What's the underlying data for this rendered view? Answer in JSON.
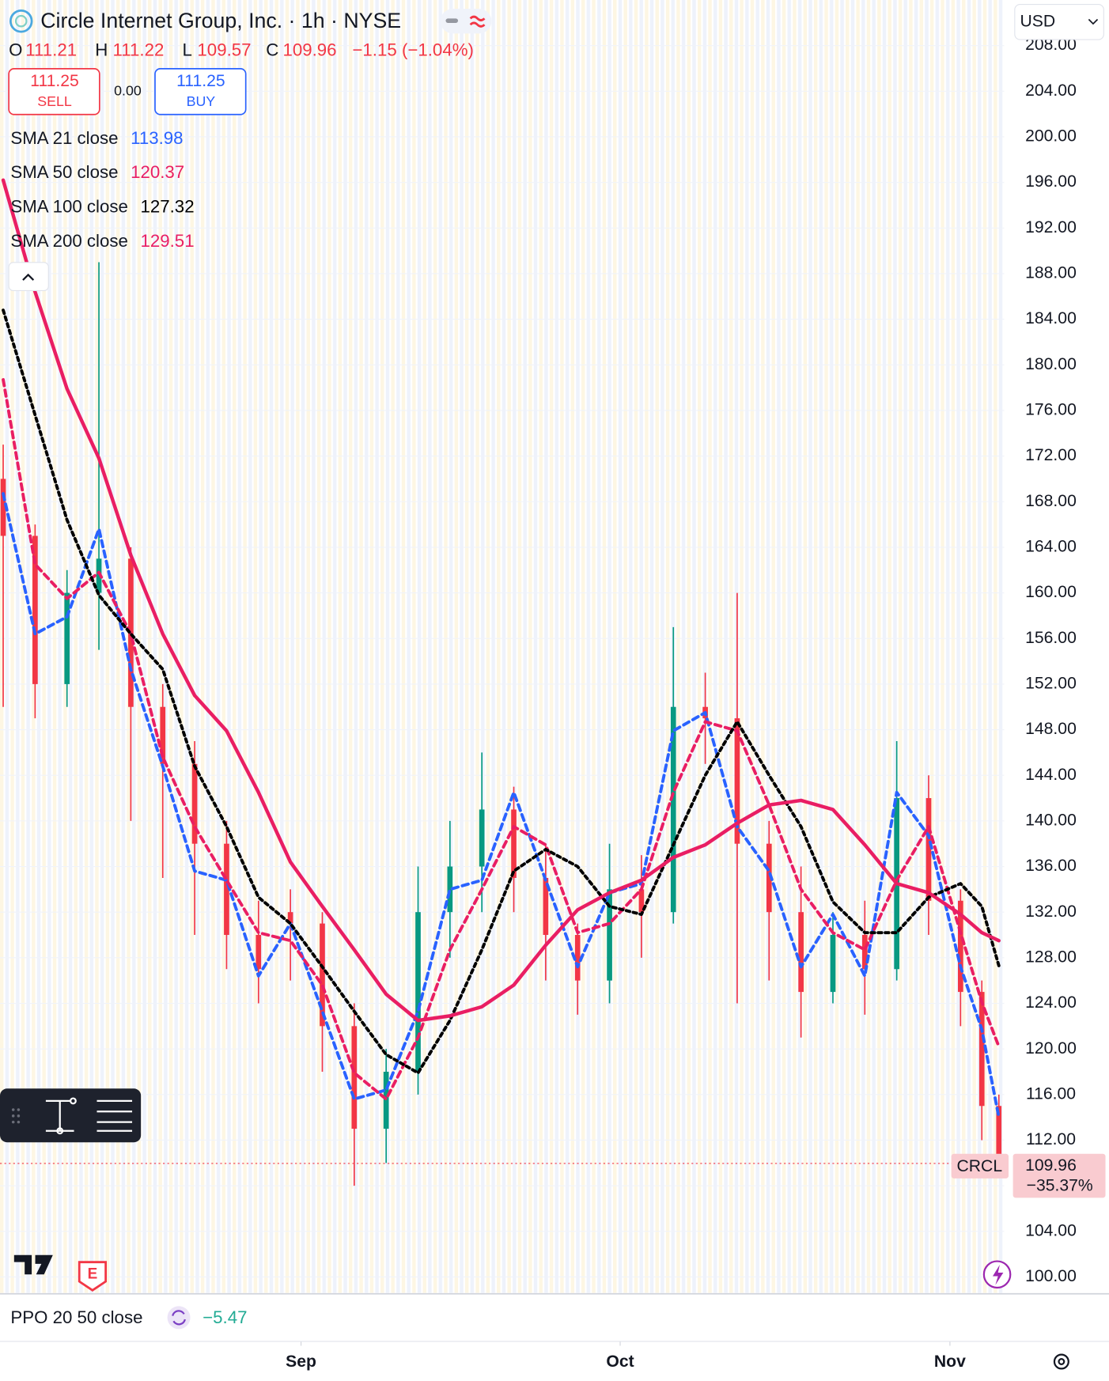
{
  "chart_data": {
    "type": "candlestick",
    "title": "Circle Internet Group, Inc. · 1h · NYSE",
    "currency": "USD",
    "ohlc": {
      "open_label": "O",
      "open": 111.21,
      "high_label": "H",
      "high": 111.22,
      "low_label": "L",
      "low": 109.57,
      "close_label": "C",
      "close": 109.96,
      "change": "−1.15 (−1.04%)"
    },
    "trade": {
      "sell_price": "111.25",
      "sell_label": "SELL",
      "spread": "0.00",
      "buy_price": "111.25",
      "buy_label": "BUY"
    },
    "x": [
      -28,
      -25,
      -22,
      -19,
      -16,
      -13,
      -10,
      -7,
      -4,
      -1,
      2,
      5,
      8,
      11,
      14,
      17,
      20,
      23,
      26,
      29,
      32,
      35,
      38,
      41,
      44,
      47,
      50,
      53,
      56,
      59,
      62,
      64,
      65.6
    ],
    "xlim": [
      -28.3,
      66.1
    ],
    "xticks": [
      {
        "value": 0,
        "label": "Sep"
      },
      {
        "value": 30,
        "label": "Oct"
      },
      {
        "value": 61,
        "label": "Nov"
      }
    ],
    "ylim": [
      98.6,
      212
    ],
    "yticks": [
      {
        "value": 100,
        "label": "100.00"
      },
      {
        "value": 104,
        "label": "104.00"
      },
      {
        "value": 108,
        "label": "108.00"
      },
      {
        "value": 112,
        "label": "112.00"
      },
      {
        "value": 116,
        "label": "116.00"
      },
      {
        "value": 120,
        "label": "120.00"
      },
      {
        "value": 124,
        "label": "124.00"
      },
      {
        "value": 128,
        "label": "128.00"
      },
      {
        "value": 132,
        "label": "132.00"
      },
      {
        "value": 136,
        "label": "136.00"
      },
      {
        "value": 140,
        "label": "140.00"
      },
      {
        "value": 144,
        "label": "144.00"
      },
      {
        "value": 148,
        "label": "148.00"
      },
      {
        "value": 152,
        "label": "152.00"
      },
      {
        "value": 156,
        "label": "156.00"
      },
      {
        "value": 160,
        "label": "160.00"
      },
      {
        "value": 164,
        "label": "164.00"
      },
      {
        "value": 168,
        "label": "168.00"
      },
      {
        "value": 172,
        "label": "172.00"
      },
      {
        "value": 176,
        "label": "176.00"
      },
      {
        "value": 180,
        "label": "180.00"
      },
      {
        "value": 184,
        "label": "184.00"
      },
      {
        "value": 188,
        "label": "188.00"
      },
      {
        "value": 192,
        "label": "192.00"
      },
      {
        "value": 196,
        "label": "196.00"
      },
      {
        "value": 200,
        "label": "200.00"
      },
      {
        "value": 204,
        "label": "204.00"
      },
      {
        "value": 208,
        "label": "208.00"
      }
    ],
    "candles": {
      "up_color": "#089981",
      "down_color": "#f23645",
      "open": [
        170,
        165,
        152,
        160,
        163,
        150,
        145,
        138,
        130,
        132,
        131,
        122,
        113,
        118,
        132,
        136,
        141,
        135,
        130,
        126,
        134,
        132,
        150,
        149,
        138,
        132,
        125,
        130,
        127,
        142,
        133,
        125,
        115
      ],
      "high": [
        173,
        166,
        162,
        189,
        164,
        152,
        147,
        140,
        133,
        134,
        132,
        124,
        120,
        136,
        140,
        146,
        143,
        138,
        131,
        138,
        137,
        157,
        153,
        160,
        140,
        136,
        132,
        133,
        147,
        144,
        134,
        126,
        116
      ],
      "low": [
        150,
        149,
        150,
        155,
        140,
        135,
        130,
        127,
        124,
        126,
        118,
        108,
        110,
        116,
        128,
        132,
        132,
        126,
        123,
        124,
        128,
        131,
        145,
        124,
        126,
        121,
        124,
        123,
        126,
        130,
        122,
        112,
        109.57
      ],
      "close": [
        165,
        152,
        160,
        163,
        150,
        145,
        138,
        130,
        127,
        131,
        122,
        113,
        118,
        132,
        136,
        141,
        135,
        130,
        126,
        134,
        132,
        150,
        149,
        138,
        132,
        125,
        130,
        127,
        142,
        133,
        125,
        115,
        109.96
      ]
    },
    "series": [
      {
        "name": "SMA 21 close",
        "legend_value": 113.98,
        "color": "#2962ff",
        "style": "dashed",
        "values": [
          168.7,
          156.4,
          157.9,
          165.6,
          153.3,
          144.8,
          135.6,
          134.8,
          126.4,
          131,
          123.3,
          115.6,
          116.4,
          123.3,
          134,
          134.8,
          142.5,
          134.8,
          127.2,
          133.7,
          134.5,
          147.9,
          149.5,
          139.5,
          135.6,
          127.2,
          131.8,
          126.4,
          142.5,
          138.7,
          127.2,
          121.7,
          114
        ]
      },
      {
        "name": "SMA 50 close",
        "legend_value": 120.37,
        "color": "#e91e63",
        "style": "dashed",
        "values": [
          178.7,
          162.5,
          159.5,
          161.8,
          156.4,
          145.6,
          139.5,
          134.8,
          130.2,
          129.5,
          125.6,
          117.9,
          115.6,
          121,
          128.7,
          134,
          139.5,
          137.9,
          130.2,
          131,
          134,
          142.5,
          148.7,
          147.9,
          141.4,
          134,
          130.2,
          128.7,
          134.8,
          139.5,
          130.2,
          124.1,
          120.2
        ]
      },
      {
        "name": "SMA 100 close",
        "legend_value": 127.32,
        "color": "#000000",
        "style": "dotted",
        "values": [
          184.8,
          175.6,
          166.4,
          159.8,
          156.4,
          153.3,
          144.8,
          139.5,
          133.3,
          131,
          127.2,
          123.3,
          119.5,
          117.9,
          122.5,
          128.7,
          135.6,
          137.5,
          136,
          132.5,
          131.8,
          137.9,
          144,
          148.7,
          144,
          139.5,
          132.9,
          130.2,
          130.2,
          133.3,
          134.5,
          132.5,
          127.3
        ]
      },
      {
        "name": "SMA 200 close",
        "legend_value": 129.51,
        "color": "#e91e63",
        "style": "solid",
        "values": [
          196.2,
          186.4,
          177.9,
          171.8,
          163.3,
          156.4,
          151,
          147.9,
          142.5,
          136.4,
          132.5,
          128.7,
          124.8,
          122.5,
          122.9,
          123.7,
          125.6,
          129.1,
          132.2,
          133.7,
          134.8,
          136.8,
          137.9,
          139.8,
          141.4,
          141.8,
          141,
          137.9,
          134.5,
          133.7,
          131.8,
          130.2,
          129.5
        ]
      }
    ],
    "last_price": {
      "symbol": "CRCL",
      "value": 109.96,
      "change_percent": "−35.37%"
    },
    "ppo": {
      "name": "PPO 20 50 close",
      "value": -5.47,
      "value_label": "−5.47"
    },
    "earnings_badge": "E"
  }
}
